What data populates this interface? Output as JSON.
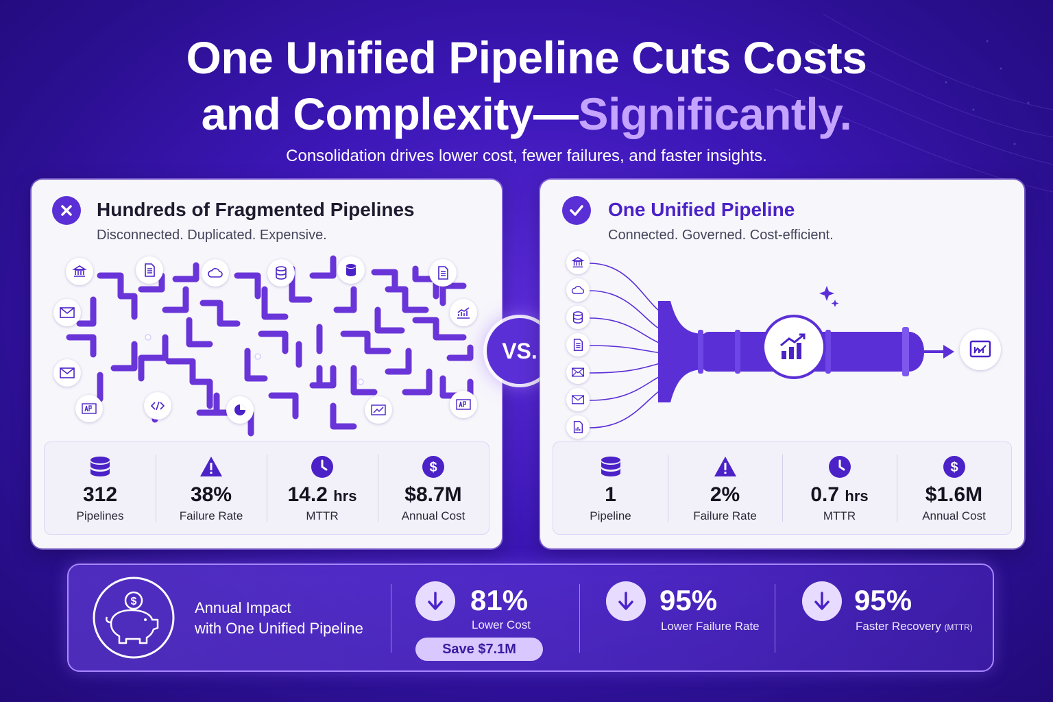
{
  "header": {
    "title_line1": "One Unified Pipeline Cuts Costs",
    "title_line2_main": "and Complexity—",
    "title_line2_accent": "Significantly.",
    "subtitle": "Consolidation drives lower cost, fewer failures, and faster insights."
  },
  "left_card": {
    "badge_icon": "x-icon",
    "title": "Hundreds of Fragmented Pipelines",
    "subtitle": "Disconnected. Duplicated. Expensive.",
    "stats": [
      {
        "icon": "database-icon",
        "value": "312",
        "unit": "",
        "label": "Pipelines"
      },
      {
        "icon": "warning-icon",
        "value": "38%",
        "unit": "",
        "label": "Failure Rate"
      },
      {
        "icon": "clock-icon",
        "value": "14.2",
        "unit": "hrs",
        "label": "MTTR"
      },
      {
        "icon": "dollar-icon",
        "value": "$8.7M",
        "unit": "",
        "label": "Annual Cost"
      }
    ]
  },
  "vs_label": "VS.",
  "right_card": {
    "badge_icon": "check-icon",
    "title": "One Unified Pipeline",
    "subtitle": "Connected. Governed. Cost-efficient.",
    "stats": [
      {
        "icon": "database-icon",
        "value": "1",
        "unit": "",
        "label": "Pipeline"
      },
      {
        "icon": "warning-icon",
        "value": "2%",
        "unit": "",
        "label": "Failure Rate"
      },
      {
        "icon": "clock-icon",
        "value": "0.7",
        "unit": "hrs",
        "label": "MTTR"
      },
      {
        "icon": "dollar-icon",
        "value": "$1.6M",
        "unit": "",
        "label": "Annual Cost"
      }
    ]
  },
  "impact": {
    "icon": "piggy-bank-icon",
    "title_line1": "Annual Impact",
    "title_line2": "with One Unified Pipeline",
    "metrics": [
      {
        "icon": "arrow-down-icon",
        "value": "81%",
        "label": "Lower Cost"
      },
      {
        "icon": "arrow-down-icon",
        "value": "95%",
        "label": "Lower Failure Rate"
      },
      {
        "icon": "arrow-down-icon",
        "value": "95%",
        "label": "Faster Recovery",
        "label_small": "(MTTR)"
      }
    ],
    "save_label": "Save $7.1M"
  },
  "colors": {
    "brand_purple": "#5b2fd6",
    "accent_lavender": "#c4a4ff",
    "card_bg": "#f7f6fb",
    "background_dark": "#2a0f8f"
  }
}
